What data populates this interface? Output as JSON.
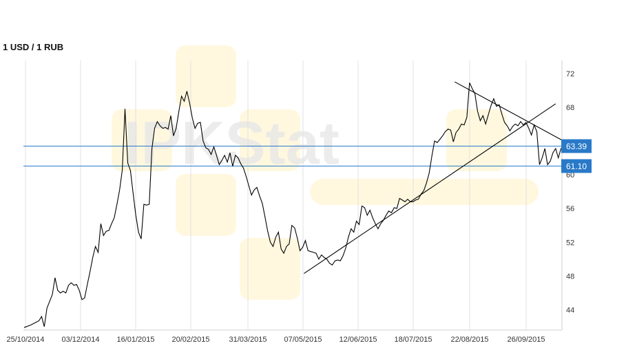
{
  "chart_data": {
    "type": "line",
    "title": "1 USD / 1 RUB",
    "xlabel": "",
    "ylabel": "",
    "watermark": "IPKStat",
    "x_ticks": [
      "25/10/2014",
      "03/12/2014",
      "16/01/2015",
      "20/02/2015",
      "31/03/2015",
      "07/05/2015",
      "12/06/2015",
      "18/07/2015",
      "22/08/2015",
      "26/09/2015"
    ],
    "y_ticks": [
      44,
      48,
      52,
      56,
      60,
      64,
      68,
      72
    ],
    "y_tick_labels": [
      "44",
      "48",
      "52",
      "56",
      "60",
      "",
      "68",
      "72"
    ],
    "ylim": [
      41.5,
      72.5
    ],
    "grid": "vertical",
    "levels": [
      {
        "value": 63.39,
        "label": "63.39",
        "color": "#2979c8"
      },
      {
        "value": 61.1,
        "label": "61.10",
        "color": "#2979c8"
      }
    ],
    "series": [
      {
        "values": [
          [
            0,
            41.9
          ],
          [
            5,
            42.2
          ],
          [
            11,
            42.7
          ],
          [
            13,
            43.2
          ],
          [
            15,
            42.0
          ],
          [
            17,
            44.2
          ],
          [
            19,
            45.0
          ],
          [
            21,
            45.8
          ],
          [
            23,
            47.8
          ],
          [
            25,
            46.3
          ],
          [
            27,
            46.0
          ],
          [
            29,
            46.2
          ],
          [
            31,
            46.0
          ],
          [
            33,
            46.9
          ],
          [
            35,
            47.2
          ],
          [
            37,
            46.9
          ],
          [
            39,
            47.0
          ],
          [
            41,
            46.3
          ],
          [
            43,
            45.2
          ],
          [
            45,
            45.4
          ],
          [
            47,
            47.0
          ],
          [
            49,
            48.5
          ],
          [
            51,
            50.2
          ],
          [
            53,
            51.5
          ],
          [
            55,
            50.8
          ],
          [
            57,
            54.2
          ],
          [
            59,
            52.8
          ],
          [
            61,
            53.3
          ],
          [
            63,
            53.4
          ],
          [
            65,
            54.2
          ],
          [
            67,
            54.9
          ],
          [
            69,
            56.5
          ],
          [
            71,
            58.2
          ],
          [
            73,
            60.6
          ],
          [
            75,
            67.8
          ],
          [
            77,
            61.4
          ],
          [
            79,
            60.5
          ],
          [
            81,
            57.8
          ],
          [
            83,
            55.2
          ],
          [
            85,
            53.2
          ],
          [
            87,
            52.4
          ],
          [
            89,
            56.5
          ],
          [
            91,
            56.4
          ],
          [
            93,
            56.5
          ],
          [
            95,
            63.1
          ],
          [
            97,
            65.5
          ],
          [
            99,
            66.3
          ],
          [
            101,
            65.8
          ],
          [
            103,
            65.5
          ],
          [
            105,
            65.6
          ],
          [
            107,
            65.4
          ],
          [
            109,
            67.0
          ],
          [
            111,
            64.6
          ],
          [
            113,
            65.5
          ],
          [
            115,
            67.5
          ],
          [
            117,
            69.3
          ],
          [
            119,
            68.7
          ],
          [
            121,
            69.9
          ],
          [
            123,
            68.5
          ],
          [
            125,
            66.7
          ],
          [
            127,
            65.5
          ],
          [
            129,
            66.1
          ],
          [
            131,
            66.2
          ],
          [
            133,
            64.0
          ],
          [
            135,
            63.2
          ],
          [
            137,
            63.0
          ],
          [
            139,
            62.4
          ],
          [
            141,
            63.3
          ],
          [
            143,
            62.3
          ],
          [
            145,
            61.2
          ],
          [
            147,
            61.7
          ],
          [
            149,
            62.3
          ],
          [
            151,
            61.5
          ],
          [
            153,
            62.6
          ],
          [
            155,
            61.0
          ],
          [
            157,
            62.3
          ],
          [
            159,
            62.0
          ],
          [
            161,
            61.3
          ],
          [
            163,
            60.8
          ],
          [
            165,
            59.8
          ],
          [
            167,
            58.7
          ],
          [
            169,
            57.6
          ],
          [
            171,
            58.2
          ],
          [
            173,
            58.5
          ],
          [
            175,
            57.5
          ],
          [
            177,
            56.6
          ],
          [
            179,
            55.0
          ],
          [
            181,
            53.3
          ],
          [
            183,
            52.0
          ],
          [
            185,
            51.5
          ],
          [
            187,
            52.6
          ],
          [
            189,
            53.2
          ],
          [
            191,
            51.2
          ],
          [
            193,
            50.7
          ],
          [
            195,
            51.5
          ],
          [
            197,
            51.8
          ],
          [
            199,
            54.0
          ],
          [
            201,
            53.7
          ],
          [
            203,
            52.5
          ],
          [
            205,
            51.0
          ],
          [
            207,
            51.4
          ],
          [
            209,
            52.2
          ],
          [
            211,
            51.0
          ],
          [
            213,
            50.9
          ],
          [
            215,
            50.8
          ],
          [
            217,
            50.7
          ],
          [
            219,
            50.0
          ],
          [
            221,
            50.5
          ],
          [
            223,
            50.2
          ],
          [
            225,
            50.0
          ],
          [
            227,
            49.5
          ],
          [
            229,
            49.3
          ],
          [
            231,
            49.8
          ],
          [
            233,
            49.9
          ],
          [
            235,
            49.8
          ],
          [
            237,
            50.4
          ],
          [
            239,
            51.3
          ],
          [
            241,
            52.6
          ],
          [
            243,
            53.6
          ],
          [
            245,
            53.2
          ],
          [
            247,
            54.5
          ],
          [
            249,
            54.1
          ],
          [
            251,
            56.3
          ],
          [
            253,
            56.1
          ],
          [
            255,
            55.2
          ],
          [
            257,
            55.8
          ],
          [
            259,
            54.9
          ],
          [
            261,
            54.2
          ],
          [
            263,
            53.6
          ],
          [
            265,
            54.2
          ],
          [
            267,
            54.6
          ],
          [
            269,
            55.2
          ],
          [
            271,
            55.7
          ],
          [
            273,
            55.5
          ],
          [
            275,
            56.1
          ],
          [
            277,
            56.0
          ],
          [
            279,
            57.2
          ],
          [
            281,
            57.0
          ],
          [
            283,
            56.8
          ],
          [
            285,
            57.1
          ],
          [
            287,
            56.8
          ],
          [
            289,
            56.8
          ],
          [
            291,
            57.0
          ],
          [
            293,
            57.1
          ],
          [
            295,
            57.7
          ],
          [
            297,
            58.1
          ],
          [
            299,
            59.0
          ],
          [
            301,
            60.2
          ],
          [
            303,
            62.2
          ],
          [
            305,
            64.0
          ],
          [
            307,
            63.8
          ],
          [
            309,
            64.2
          ],
          [
            311,
            64.6
          ],
          [
            313,
            65.1
          ],
          [
            315,
            65.4
          ],
          [
            317,
            65.3
          ],
          [
            319,
            63.9
          ],
          [
            321,
            65.0
          ],
          [
            323,
            65.4
          ],
          [
            325,
            66.0
          ],
          [
            327,
            65.9
          ],
          [
            329,
            66.8
          ],
          [
            331,
            70.9
          ],
          [
            333,
            70.2
          ],
          [
            335,
            69.6
          ],
          [
            337,
            67.5
          ],
          [
            339,
            66.4
          ],
          [
            341,
            67.0
          ],
          [
            343,
            66.0
          ],
          [
            345,
            67.1
          ],
          [
            347,
            68.2
          ],
          [
            349,
            69.0
          ],
          [
            351,
            68.1
          ],
          [
            353,
            68.3
          ],
          [
            355,
            67.2
          ],
          [
            357,
            66.2
          ],
          [
            359,
            65.8
          ],
          [
            361,
            65.2
          ],
          [
            363,
            65.7
          ],
          [
            365,
            66.0
          ],
          [
            367,
            65.8
          ],
          [
            369,
            66.3
          ],
          [
            371,
            65.9
          ],
          [
            373,
            66.2
          ],
          [
            375,
            65.5
          ],
          [
            377,
            64.7
          ],
          [
            379,
            65.9
          ],
          [
            381,
            65.1
          ],
          [
            383,
            61.2
          ],
          [
            385,
            62.0
          ],
          [
            387,
            63.1
          ],
          [
            389,
            61.2
          ],
          [
            391,
            61.6
          ],
          [
            393,
            62.6
          ],
          [
            395,
            63.1
          ],
          [
            397,
            62.0
          ],
          [
            399,
            63.1
          ],
          [
            401,
            63.39
          ]
        ]
      }
    ],
    "trendlines": [
      {
        "from": [
          208,
          48.3
        ],
        "to": [
          395,
          68.4
        ]
      },
      {
        "from": [
          320,
          71.0
        ],
        "to": [
          402,
          63.9
        ]
      }
    ]
  }
}
